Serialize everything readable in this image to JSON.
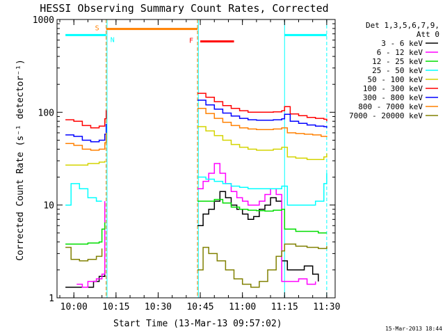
{
  "chart_data": {
    "type": "line",
    "title": "HESSI Observing Summary Count Rates, Corrected",
    "xlabel": "Start Time (13-Mar-13 09:57:02)",
    "ylabel": "Corrected Count Rate (s⁻¹ detector⁻¹)",
    "y_scale": "log",
    "ylim": [
      1,
      1000
    ],
    "xlim": [
      -3,
      96
    ],
    "x_ticks": [
      {
        "value": 3,
        "label": "10:00"
      },
      {
        "value": 18,
        "label": "10:15"
      },
      {
        "value": 33,
        "label": "10:30"
      },
      {
        "value": 48,
        "label": "10:45"
      },
      {
        "value": 63,
        "label": "11:00"
      },
      {
        "value": 78,
        "label": "11:15"
      },
      {
        "value": 93,
        "label": "11:30"
      }
    ],
    "y_ticks": [
      {
        "value": 1,
        "label": "1"
      },
      {
        "value": 10,
        "label": "10"
      },
      {
        "value": 100,
        "label": "100"
      },
      {
        "value": 1000,
        "label": "1000"
      }
    ],
    "legend": {
      "title_lines": [
        "Det 1,3,5,6,7,9,",
        "Att 0"
      ],
      "position": "right"
    },
    "series": [
      {
        "name": "3 - 6 keV",
        "color": "#000000",
        "segments": [
          [
            [
              0,
              1.3
            ],
            [
              5,
              1.3
            ],
            [
              10,
              1.5
            ],
            [
              12,
              1.7
            ],
            [
              14,
              2.0
            ]
          ],
          [
            [
              47,
              6.0
            ],
            [
              49,
              8.0
            ],
            [
              51,
              9.0
            ],
            [
              53,
              11.0
            ],
            [
              55,
              14.0
            ],
            [
              57,
              12.0
            ],
            [
              59,
              10.0
            ],
            [
              61,
              9.0
            ],
            [
              63,
              8.0
            ],
            [
              65,
              7.0
            ],
            [
              67,
              7.5
            ],
            [
              69,
              9.0
            ],
            [
              71,
              10.0
            ],
            [
              73,
              12.0
            ],
            [
              75,
              11.0
            ],
            [
              77,
              2.5
            ],
            [
              79,
              2.0
            ],
            [
              82,
              2.0
            ],
            [
              85,
              2.2
            ],
            [
              88,
              1.8
            ],
            [
              90,
              1.5
            ]
          ]
        ]
      },
      {
        "name": "6 - 12 keV",
        "color": "#ff00ff",
        "segments": [
          [
            [
              4,
              1.4
            ],
            [
              6,
              1.3
            ],
            [
              8,
              1.5
            ],
            [
              11,
              1.6
            ],
            [
              13,
              1.8
            ],
            [
              14,
              11.0
            ]
          ],
          [
            [
              47,
              15.0
            ],
            [
              49,
              18.0
            ],
            [
              51,
              22.0
            ],
            [
              53,
              28.0
            ],
            [
              55,
              22.0
            ],
            [
              57,
              17.0
            ],
            [
              59,
              14.0
            ],
            [
              61,
              12.0
            ],
            [
              63,
              11.0
            ],
            [
              65,
              10.0
            ],
            [
              67,
              10.0
            ],
            [
              69,
              11.0
            ],
            [
              71,
              13.0
            ],
            [
              73,
              15.0
            ],
            [
              75,
              13.0
            ],
            [
              77,
              1.5
            ],
            [
              80,
              1.5
            ],
            [
              83,
              1.6
            ],
            [
              86,
              1.4
            ],
            [
              89,
              1.5
            ]
          ]
        ]
      },
      {
        "name": "12 - 25 keV",
        "color": "#00dd00",
        "segments": [
          [
            [
              0,
              3.8
            ],
            [
              4,
              3.8
            ],
            [
              8,
              3.9
            ],
            [
              12,
              4.0
            ],
            [
              13,
              5.5
            ],
            [
              14,
              6.5
            ]
          ],
          [
            [
              47,
              11.0
            ],
            [
              50,
              11.0
            ],
            [
              53,
              11.5
            ],
            [
              56,
              10.5
            ],
            [
              59,
              9.5
            ],
            [
              62,
              9.0
            ],
            [
              65,
              8.8
            ],
            [
              68,
              8.7
            ],
            [
              71,
              8.6
            ],
            [
              74,
              8.8
            ],
            [
              77,
              9.0
            ],
            [
              78,
              5.5
            ],
            [
              82,
              5.2
            ],
            [
              86,
              5.2
            ],
            [
              90,
              5.0
            ],
            [
              93,
              5.0
            ]
          ]
        ]
      },
      {
        "name": "25 - 50 keV",
        "color": "#00ffff",
        "segments": [
          [
            [
              0,
              10.0
            ],
            [
              2,
              17.0
            ],
            [
              5,
              15.0
            ],
            [
              8,
              12.0
            ],
            [
              11,
              11.0
            ],
            [
              13,
              11.0
            ]
          ],
          [
            [
              47,
              20.0
            ],
            [
              50,
              19.0
            ],
            [
              53,
              18.0
            ],
            [
              56,
              17.0
            ],
            [
              59,
              16.0
            ],
            [
              62,
              15.5
            ],
            [
              65,
              15.0
            ],
            [
              68,
              15.0
            ],
            [
              71,
              15.0
            ],
            [
              74,
              15.0
            ],
            [
              77,
              16.0
            ],
            [
              79,
              10.0
            ],
            [
              82,
              10.0
            ],
            [
              86,
              10.0
            ],
            [
              89,
              11.0
            ],
            [
              92,
              17.0
            ],
            [
              93,
              22.0
            ]
          ]
        ]
      },
      {
        "name": "50 - 100 keV",
        "color": "#d4d400",
        "segments": [
          [
            [
              0,
              27.0
            ],
            [
              4,
              27.0
            ],
            [
              8,
              28.0
            ],
            [
              12,
              29.0
            ],
            [
              14,
              30.0
            ]
          ],
          [
            [
              47,
              70.0
            ],
            [
              50,
              63.0
            ],
            [
              53,
              56.0
            ],
            [
              56,
              50.0
            ],
            [
              59,
              45.0
            ],
            [
              62,
              42.0
            ],
            [
              65,
              40.0
            ],
            [
              68,
              39.0
            ],
            [
              71,
              39.0
            ],
            [
              74,
              40.0
            ],
            [
              77,
              42.0
            ],
            [
              79,
              33.0
            ],
            [
              82,
              32.0
            ],
            [
              86,
              31.0
            ],
            [
              89,
              31.0
            ],
            [
              92,
              33.0
            ],
            [
              93,
              36.0
            ]
          ]
        ]
      },
      {
        "name": "100 - 300 keV",
        "color": "#ff0000",
        "segments": [
          [
            [
              0,
              83.0
            ],
            [
              3,
              80.0
            ],
            [
              6,
              72.0
            ],
            [
              9,
              68.0
            ],
            [
              12,
              71.0
            ],
            [
              14,
              85.0
            ],
            [
              14.5,
              105.0
            ]
          ],
          [
            [
              47,
              160.0
            ],
            [
              50,
              145.0
            ],
            [
              53,
              130.0
            ],
            [
              56,
              118.0
            ],
            [
              59,
              110.0
            ],
            [
              62,
              104.0
            ],
            [
              65,
              100.0
            ],
            [
              68,
              100.0
            ],
            [
              71,
              100.0
            ],
            [
              74,
              101.0
            ],
            [
              77,
              104.0
            ],
            [
              78,
              115.0
            ],
            [
              80,
              96.0
            ],
            [
              83,
              92.0
            ],
            [
              86,
              88.0
            ],
            [
              89,
              86.0
            ],
            [
              92,
              84.0
            ],
            [
              93,
              80.0
            ]
          ]
        ]
      },
      {
        "name": "300 - 800 keV",
        "color": "#0000ff",
        "segments": [
          [
            [
              0,
              57.0
            ],
            [
              3,
              55.0
            ],
            [
              6,
              50.0
            ],
            [
              9,
              48.0
            ],
            [
              12,
              50.0
            ],
            [
              14,
              58.0
            ],
            [
              14.5,
              75.0
            ]
          ],
          [
            [
              47,
              135.0
            ],
            [
              50,
              120.0
            ],
            [
              53,
              108.0
            ],
            [
              56,
              98.0
            ],
            [
              59,
              91.0
            ],
            [
              62,
              86.0
            ],
            [
              65,
              83.0
            ],
            [
              68,
              82.0
            ],
            [
              71,
              82.0
            ],
            [
              74,
              83.0
            ],
            [
              77,
              85.0
            ],
            [
              78,
              95.0
            ],
            [
              80,
              80.0
            ],
            [
              83,
              76.0
            ],
            [
              86,
              73.0
            ],
            [
              89,
              71.0
            ],
            [
              92,
              70.0
            ],
            [
              93,
              68.0
            ]
          ]
        ]
      },
      {
        "name": "800 - 7000 keV",
        "color": "#ff8000",
        "segments": [
          [
            [
              0,
              46.0
            ],
            [
              3,
              44.0
            ],
            [
              6,
              40.0
            ],
            [
              9,
              39.0
            ],
            [
              12,
              40.0
            ],
            [
              14,
              47.0
            ],
            [
              14.5,
              60.0
            ]
          ],
          [
            [
              47,
              110.0
            ],
            [
              50,
              97.0
            ],
            [
              53,
              86.0
            ],
            [
              56,
              78.0
            ],
            [
              59,
              72.0
            ],
            [
              62,
              68.0
            ],
            [
              65,
              66.0
            ],
            [
              68,
              65.0
            ],
            [
              71,
              65.0
            ],
            [
              74,
              66.0
            ],
            [
              77,
              68.0
            ],
            [
              79,
              60.0
            ],
            [
              82,
              59.0
            ],
            [
              85,
              58.0
            ],
            [
              88,
              57.0
            ],
            [
              91,
              55.0
            ],
            [
              93,
              54.0
            ]
          ]
        ]
      },
      {
        "name": "7000 - 20000 keV",
        "color": "#808000",
        "segments": [
          [
            [
              0,
              3.5
            ],
            [
              2,
              2.6
            ],
            [
              5,
              2.5
            ],
            [
              8,
              2.6
            ],
            [
              11,
              2.8
            ],
            [
              13,
              3.4
            ]
          ],
          [
            [
              47,
              2.0
            ],
            [
              49,
              3.5
            ],
            [
              51,
              3.0
            ],
            [
              54,
              2.5
            ],
            [
              57,
              2.0
            ],
            [
              60,
              1.6
            ],
            [
              63,
              1.4
            ],
            [
              66,
              1.3
            ],
            [
              69,
              1.5
            ],
            [
              72,
              2.0
            ],
            [
              75,
              2.8
            ],
            [
              77,
              3.2
            ],
            [
              78,
              3.8
            ],
            [
              82,
              3.6
            ],
            [
              86,
              3.5
            ],
            [
              90,
              3.4
            ],
            [
              93,
              3.6
            ]
          ]
        ]
      }
    ],
    "bands": [
      {
        "label": "",
        "color": "#00ffff",
        "x": [
          0,
          14.5
        ],
        "y": 680
      },
      {
        "label": "",
        "color": "#00ffff",
        "x": [
          78,
          93
        ],
        "y": 680
      },
      {
        "label": "S",
        "color": "#ff8000",
        "x": [
          14.5,
          47
        ],
        "y": 790
      },
      {
        "label": "F",
        "color": "#ff0000",
        "x": [
          48,
          60
        ],
        "y": 580
      }
    ],
    "markers": [
      {
        "label": "N",
        "x": 15,
        "y": 680,
        "color": "#00ffff"
      }
    ],
    "vlines": [
      {
        "x": 14.5,
        "color": "#ff8000",
        "style": "dashed"
      },
      {
        "x": 47,
        "color": "#ff8000",
        "style": "dashed"
      },
      {
        "x": 14.8,
        "color": "#00ffff",
        "style": "solid"
      },
      {
        "x": 47.3,
        "color": "#00ffff",
        "style": "solid"
      },
      {
        "x": 78,
        "color": "#00ffff",
        "style": "solid"
      },
      {
        "x": 93,
        "color": "#00ffff",
        "style": "dashed"
      }
    ]
  },
  "footer": {
    "timestamp": "15-Mar-2013 18:44"
  }
}
